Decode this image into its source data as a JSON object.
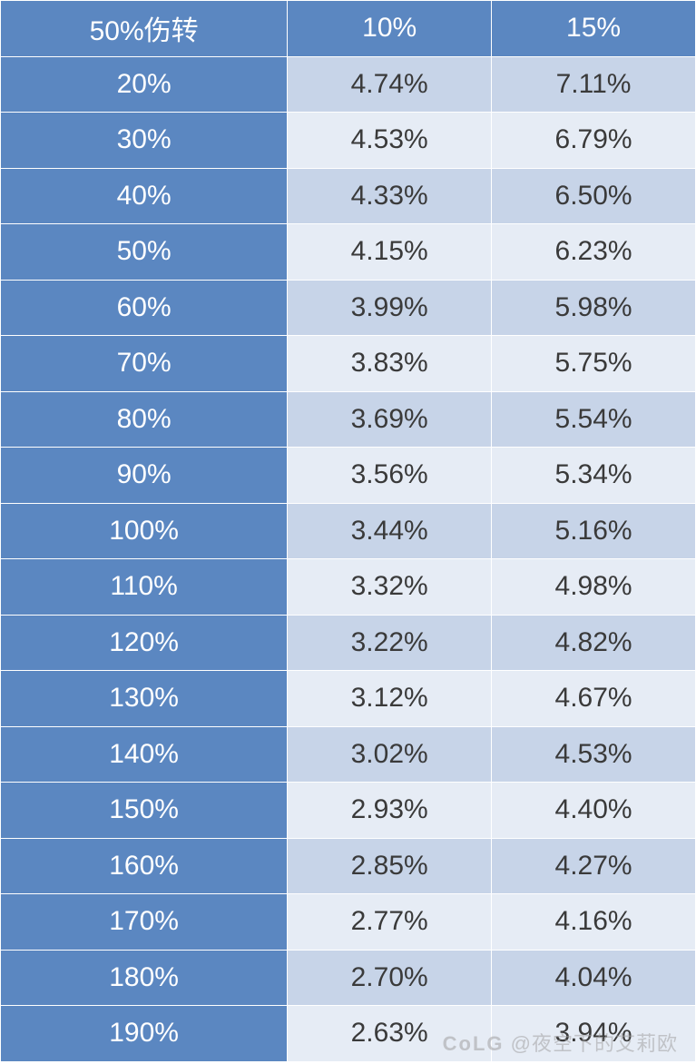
{
  "table": {
    "type": "table",
    "columns": [
      "50%伤转",
      "10%",
      "15%"
    ],
    "rows": [
      [
        "20%",
        "4.74%",
        "7.11%"
      ],
      [
        "30%",
        "4.53%",
        "6.79%"
      ],
      [
        "40%",
        "4.33%",
        "6.50%"
      ],
      [
        "50%",
        "4.15%",
        "6.23%"
      ],
      [
        "60%",
        "3.99%",
        "5.98%"
      ],
      [
        "70%",
        "3.83%",
        "5.75%"
      ],
      [
        "80%",
        "3.69%",
        "5.54%"
      ],
      [
        "90%",
        "3.56%",
        "5.34%"
      ],
      [
        "100%",
        "3.44%",
        "5.16%"
      ],
      [
        "110%",
        "3.32%",
        "4.98%"
      ],
      [
        "120%",
        "3.22%",
        "4.82%"
      ],
      [
        "130%",
        "3.12%",
        "4.67%"
      ],
      [
        "140%",
        "3.02%",
        "4.53%"
      ],
      [
        "150%",
        "2.93%",
        "4.40%"
      ],
      [
        "160%",
        "2.85%",
        "4.27%"
      ],
      [
        "170%",
        "2.77%",
        "4.16%"
      ],
      [
        "180%",
        "2.70%",
        "4.04%"
      ],
      [
        "190%",
        "2.63%",
        "3.94%"
      ]
    ],
    "colors": {
      "header_bg": "#5b87c1",
      "header_text": "#ffffff",
      "rowlabel_bg": "#5b87c1",
      "rowlabel_text": "#ffffff",
      "cell_odd_bg": "#c7d4e8",
      "cell_even_bg": "#e6ecf5",
      "cell_text": "#3a3a3a",
      "border": "#ffffff"
    },
    "cell_fontsize": 30,
    "row_height": 61.5
  },
  "watermark": {
    "logo": "CoLG",
    "text": "@夜空下的艾莉欧"
  }
}
